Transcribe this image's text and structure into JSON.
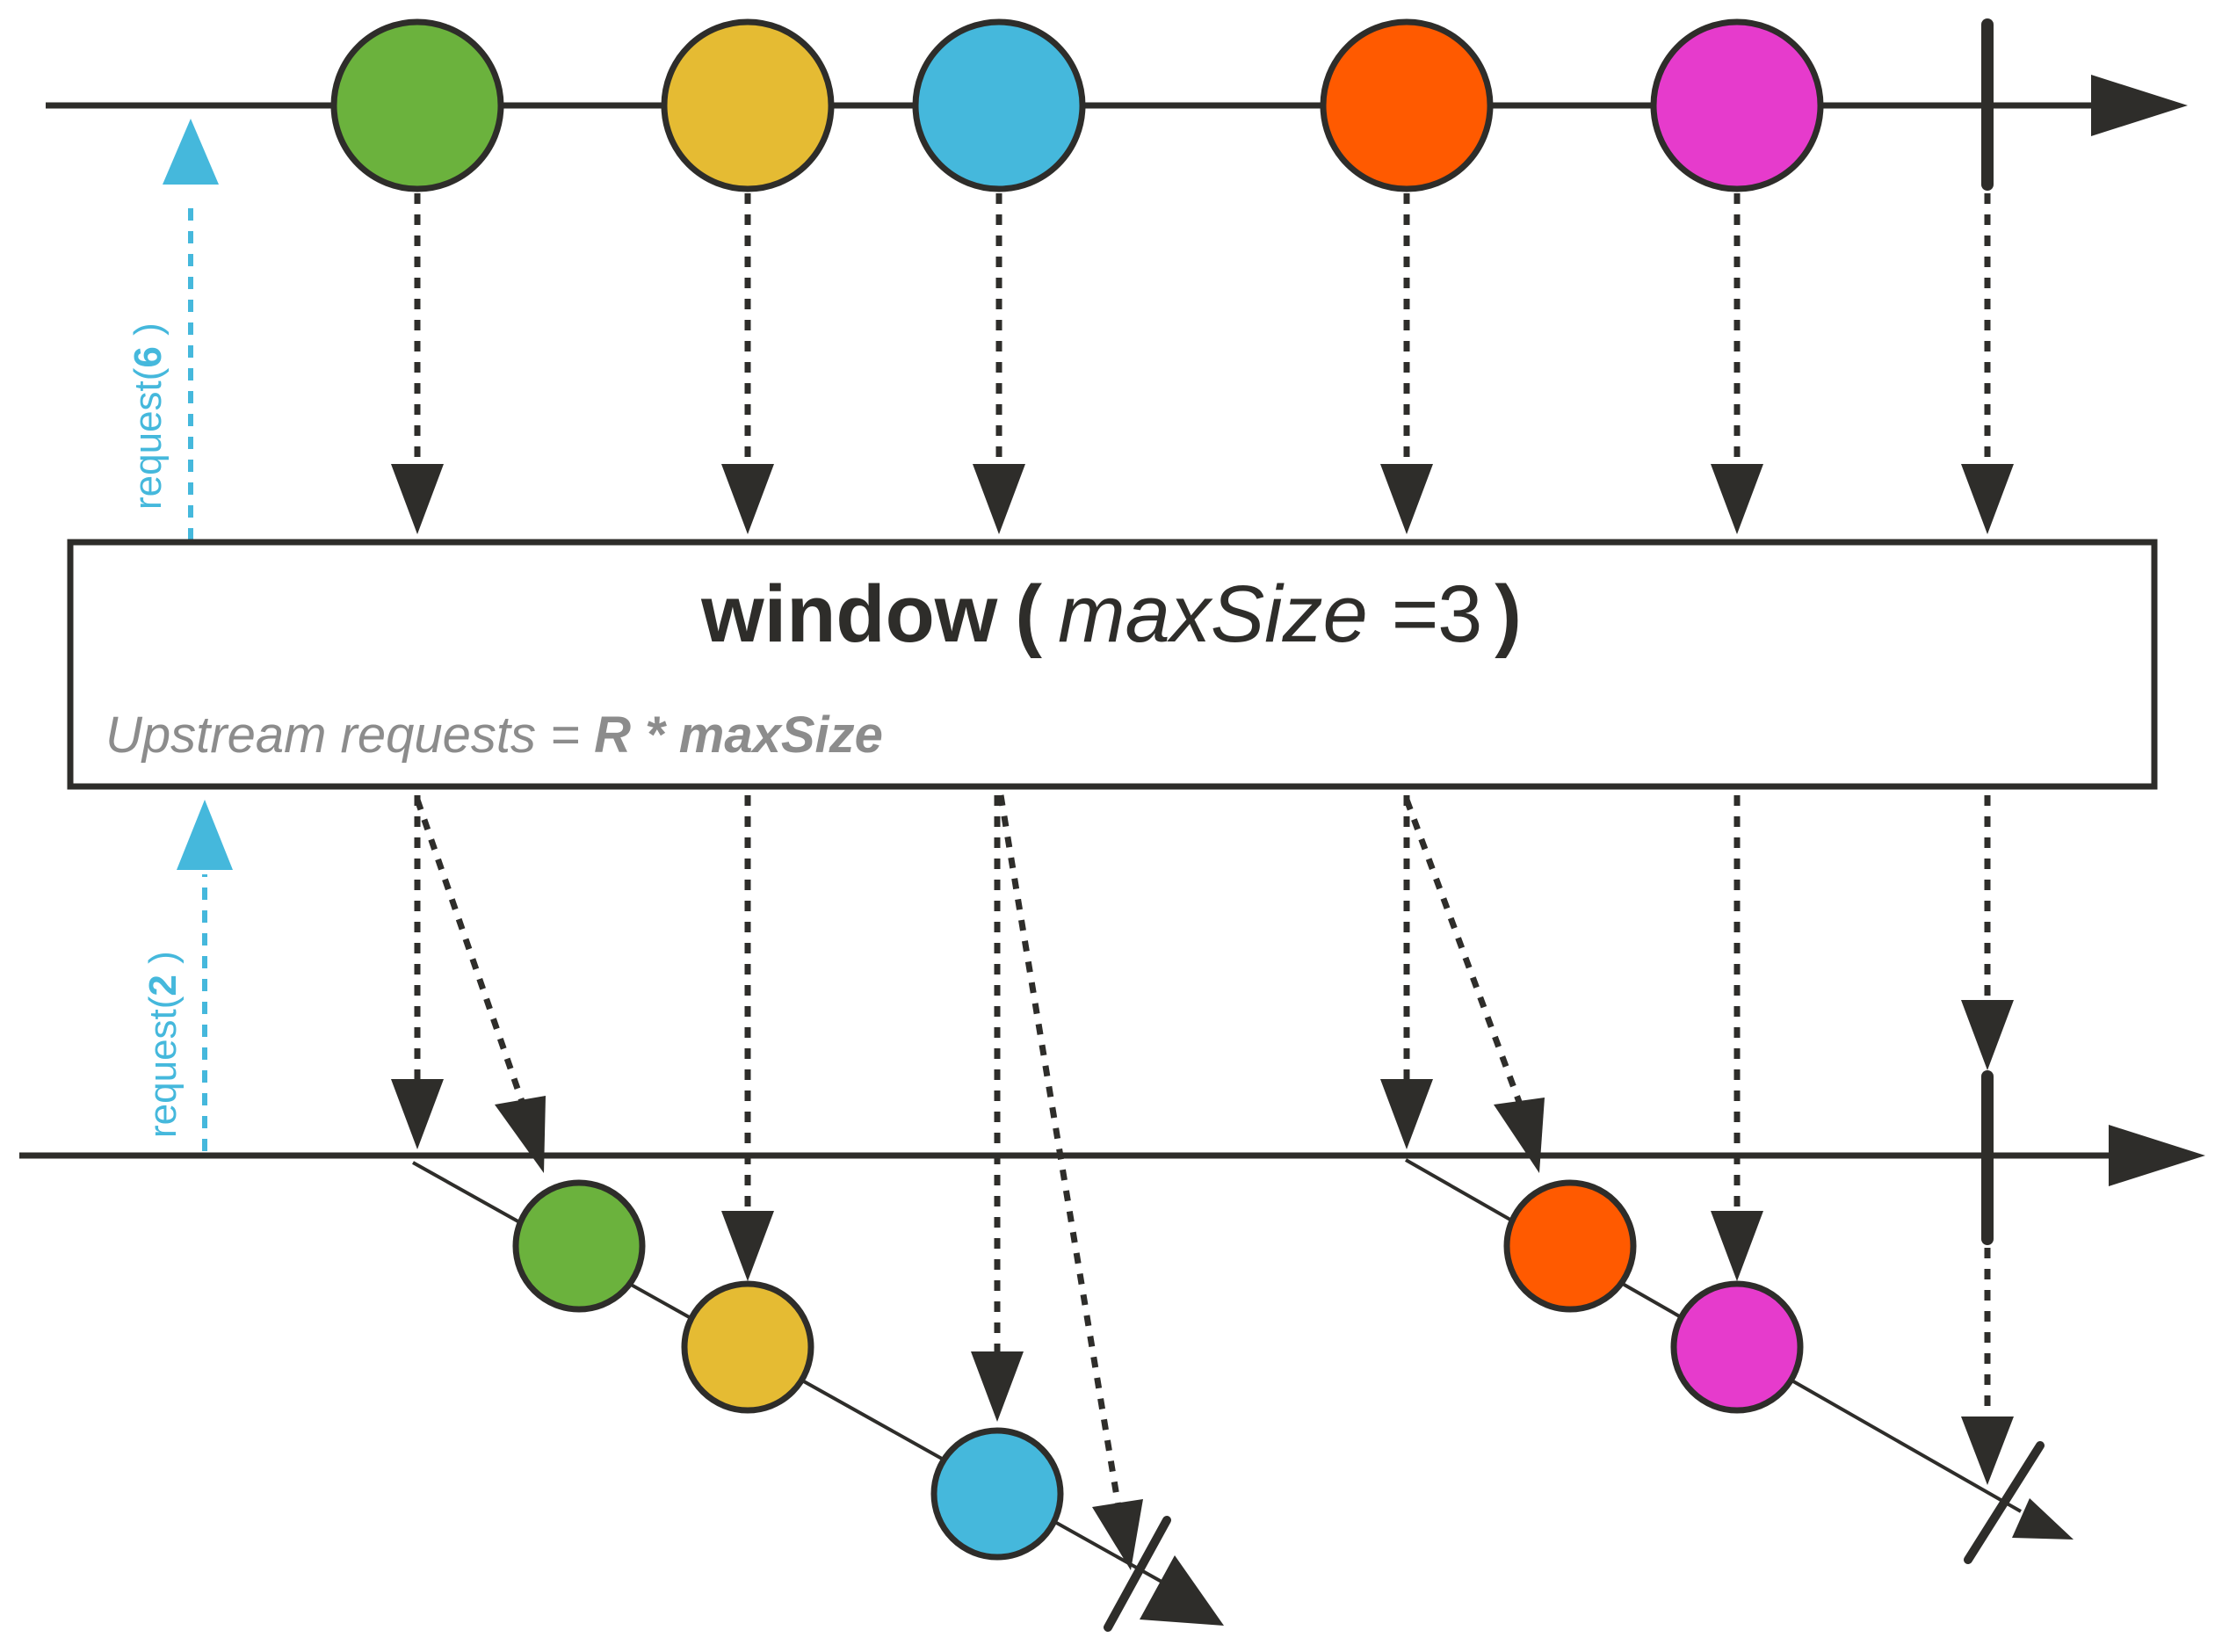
{
  "operator": {
    "name": "window",
    "open_paren": "(",
    "param_name": "maxSize",
    "param_op": " =",
    "param_value": "3",
    "close_paren": ")"
  },
  "note": {
    "prefix": "Upstream requests = ",
    "formula": "R * maxSize"
  },
  "requests": {
    "upstream": {
      "prefix": "request(",
      "count": "6",
      "suffix": " )"
    },
    "downstream": {
      "prefix": "request(",
      "count": "2",
      "suffix": " )"
    }
  },
  "marbles": [
    {
      "name": "green",
      "color": "#6bb23d"
    },
    {
      "name": "yellow",
      "color": "#e5bb33"
    },
    {
      "name": "blue",
      "color": "#45b8dc"
    },
    {
      "name": "orange",
      "color": "#ff5a00"
    },
    {
      "name": "magenta",
      "color": "#e63bcc"
    }
  ],
  "colors": {
    "stroke": "#2e2d2a",
    "request_arrow": "#45b8dc",
    "note_text": "#8c8c8c",
    "operator_box": "#ffffff"
  },
  "windows": [
    {
      "marbles": [
        "green",
        "yellow",
        "blue"
      ],
      "completed": true
    },
    {
      "marbles": [
        "orange",
        "magenta"
      ],
      "completed": true
    }
  ]
}
